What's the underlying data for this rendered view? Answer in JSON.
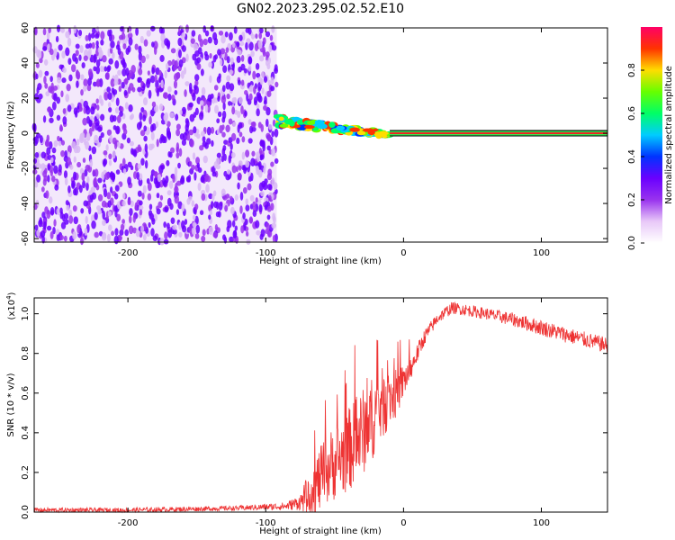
{
  "chart_data": [
    {
      "type": "heatmap",
      "title": "GN02.2023.295.02.52.E10",
      "xlabel": "Height of straight line (km)",
      "ylabel": "Frequency (Hz)",
      "xlim": [
        -268,
        148
      ],
      "ylim": [
        -62,
        60
      ],
      "xticks": [
        -200,
        -100,
        0,
        100
      ],
      "yticks": [
        60,
        40,
        20,
        0,
        -20,
        -40,
        -60
      ],
      "colorbar": {
        "label": "Normalized spectral amplitude",
        "range": [
          0,
          1
        ],
        "ticks": [
          0.0,
          0.2,
          0.4,
          0.6,
          0.8
        ],
        "colors": [
          "#ffffff",
          "#e8c8f8",
          "#9933ee",
          "#6a00ff",
          "#0033ff",
          "#00ccff",
          "#00ff66",
          "#66ff00",
          "#ffdd00",
          "#ff3300",
          "#ff0066"
        ]
      },
      "regions": [
        {
          "description_value": "noise",
          "x": [
            -268,
            -92
          ],
          "y": [
            -62,
            60
          ],
          "amplitude": 0.15
        },
        {
          "description_value": "transition",
          "x": [
            -92,
            -10
          ],
          "y": [
            -8,
            10
          ],
          "amplitude": 0.6
        },
        {
          "description_value": "signal",
          "x": [
            -10,
            148
          ],
          "y": [
            -1,
            1
          ],
          "amplitude": 0.9
        }
      ]
    },
    {
      "type": "line",
      "xlabel": "Height of straight line (km)",
      "ylabel": "SNR (10 * v/v)",
      "yscale_label": "(x10",
      "yscale_exp": "4",
      "yscale_close": ")",
      "xlim": [
        -268,
        148
      ],
      "ylim": [
        0,
        1.08
      ],
      "xticks": [
        -200,
        -100,
        0,
        100
      ],
      "yticks": [
        0.0,
        0.2,
        0.4,
        0.6,
        0.8,
        1.0
      ],
      "ytick_labels": [
        "0.0",
        "0.2",
        "0.4",
        "0.6",
        "0.8",
        "1.0"
      ],
      "color": "#ee3333",
      "envelope": {
        "x": [
          -268,
          -200,
          -120,
          -85,
          -75,
          -65,
          -55,
          -45,
          -35,
          -25,
          -15,
          -5,
          5,
          15,
          25,
          35,
          45,
          60,
          80,
          100,
          120,
          148
        ],
        "y": [
          0.01,
          0.01,
          0.02,
          0.03,
          0.05,
          0.12,
          0.22,
          0.28,
          0.35,
          0.45,
          0.55,
          0.6,
          0.72,
          0.88,
          0.98,
          1.03,
          1.02,
          1.0,
          0.97,
          0.93,
          0.89,
          0.84
        ],
        "noise": [
          0.012,
          0.012,
          0.012,
          0.02,
          0.04,
          0.15,
          0.18,
          0.2,
          0.22,
          0.22,
          0.18,
          0.12,
          0.06,
          0.04,
          0.03,
          0.03,
          0.03,
          0.03,
          0.035,
          0.04,
          0.04,
          0.04
        ]
      }
    }
  ]
}
